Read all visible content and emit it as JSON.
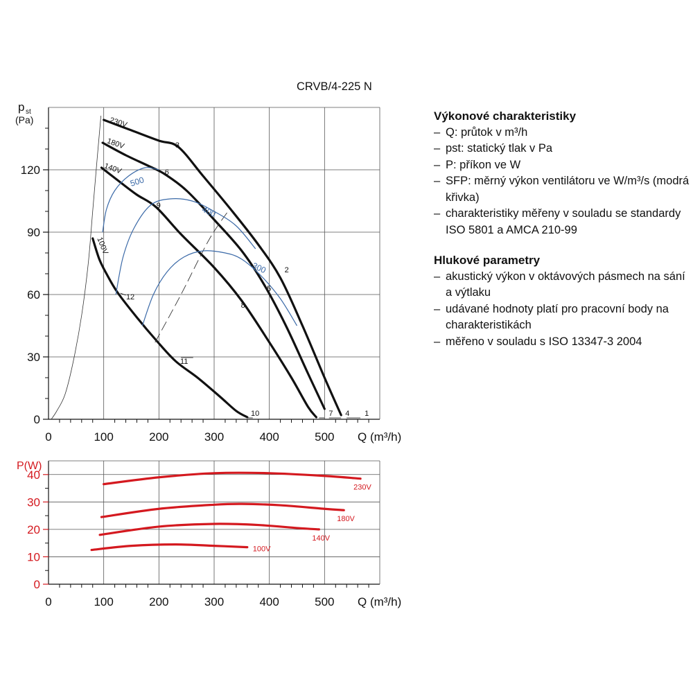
{
  "model_title": "CRVB/4-225 N",
  "legend": {
    "section1_title": "Výkonové charakteristiky",
    "section1_items": [
      "Q: průtok v m³/h",
      "pst: statický tlak v Pa",
      "P: příkon ve W",
      "SFP: měrný výkon ventilátoru ve W/m³/s (modrá křivka)",
      "charakteristiky měřeny v souladu se standardy ISO 5801 a AMCA 210-99"
    ],
    "section2_title": "Hlukové parametry",
    "section2_items": [
      "akustický výkon v oktávových pásmech na sání a výtlaku",
      "udávané hodnoty platí pro pracovní body na charakteristikách",
      "měřeno v souladu s ISO 13347-3 2004"
    ]
  },
  "colors": {
    "fan_curves": "#111111",
    "sfp_curves": "#3b6aa8",
    "power_curves": "#d4191f",
    "grid": "#555555"
  },
  "chart_data": [
    {
      "type": "line",
      "ylabel_main": "p",
      "ylabel_sub": "st",
      "ylabel_unit": "(Pa)",
      "xlabel": "Q (m³/h)",
      "xlim": [
        0,
        600
      ],
      "ylim": [
        0,
        150
      ],
      "x_ticks": [
        0,
        100,
        200,
        300,
        400,
        500
      ],
      "y_ticks": [
        0,
        30,
        60,
        90,
        120
      ],
      "grid": true,
      "series": [
        {
          "name": "230V",
          "kind": "fan",
          "points": [
            [
              100,
              144
            ],
            [
              150,
              139
            ],
            [
              200,
              134
            ],
            [
              235,
              131
            ],
            [
              280,
              117
            ],
            [
              330,
              101
            ],
            [
              380,
              84
            ],
            [
              420,
              68
            ],
            [
              460,
              45
            ],
            [
              500,
              20
            ],
            [
              530,
              2
            ]
          ]
        },
        {
          "name": "180V",
          "kind": "fan",
          "points": [
            [
              98,
              133
            ],
            [
              140,
              127
            ],
            [
              180,
              122
            ],
            [
              210,
              118
            ],
            [
              250,
              110
            ],
            [
              300,
              96
            ],
            [
              350,
              81
            ],
            [
              390,
              65
            ],
            [
              430,
              45
            ],
            [
              470,
              22
            ],
            [
              500,
              5
            ]
          ]
        },
        {
          "name": "140V",
          "kind": "fan",
          "points": [
            [
              96,
              121
            ],
            [
              130,
              114
            ],
            [
              160,
              108
            ],
            [
              195,
              102
            ],
            [
              240,
              89
            ],
            [
              300,
              73
            ],
            [
              350,
              57
            ],
            [
              400,
              37
            ],
            [
              440,
              20
            ],
            [
              470,
              6
            ],
            [
              485,
              1
            ]
          ]
        },
        {
          "name": "100V",
          "kind": "fan",
          "points": [
            [
              80,
              87
            ],
            [
              92,
              77
            ],
            [
              105,
              70
            ],
            [
              125,
              61
            ],
            [
              160,
              49
            ],
            [
              195,
              38
            ],
            [
              230,
              28
            ],
            [
              270,
              20
            ],
            [
              310,
              11
            ],
            [
              340,
              4
            ],
            [
              360,
              1
            ]
          ]
        },
        {
          "name": "",
          "kind": "system",
          "points": [
            [
              5,
              0
            ],
            [
              15,
              4
            ],
            [
              30,
              12
            ],
            [
              45,
              28
            ],
            [
              60,
              50
            ],
            [
              72,
              75
            ],
            [
              80,
              100
            ],
            [
              88,
              125
            ],
            [
              95,
              146
            ]
          ]
        },
        {
          "name": "",
          "kind": "system-dashed",
          "points": [
            [
              193,
              37
            ],
            [
              240,
              60
            ],
            [
              290,
              86
            ],
            [
              325,
              100
            ]
          ]
        },
        {
          "name": "500",
          "kind": "sfp",
          "points": [
            [
              98,
              90
            ],
            [
              105,
              101
            ],
            [
              120,
              110
            ],
            [
              145,
              117
            ],
            [
              175,
              121
            ],
            [
              200,
              120
            ]
          ]
        },
        {
          "name": "400",
          "kind": "sfp",
          "points": [
            [
              122,
              60
            ],
            [
              135,
              78
            ],
            [
              155,
              92
            ],
            [
              185,
              103
            ],
            [
              220,
              106
            ],
            [
              260,
              105
            ],
            [
              300,
              100
            ],
            [
              340,
              93
            ],
            [
              375,
              82
            ]
          ]
        },
        {
          "name": "300",
          "kind": "sfp",
          "points": [
            [
              170,
              45
            ],
            [
              190,
              60
            ],
            [
              215,
              71
            ],
            [
              245,
              78
            ],
            [
              280,
              81
            ],
            [
              320,
              80
            ],
            [
              350,
              77
            ],
            [
              385,
              69
            ],
            [
              420,
              58
            ],
            [
              450,
              45
            ]
          ]
        }
      ],
      "labels": {
        "fan_voltages": [
          "230V",
          "180V",
          "140V",
          "100V"
        ],
        "points": [
          "1",
          "2",
          "3",
          "4",
          "5",
          "6",
          "7",
          "8",
          "9",
          "10",
          "11",
          "12"
        ],
        "sfp": [
          "500",
          "400",
          "300"
        ]
      }
    },
    {
      "type": "line",
      "ylabel": "P(W)",
      "xlabel": "Q (m³/h)",
      "xlim": [
        0,
        600
      ],
      "ylim": [
        0,
        45
      ],
      "x_ticks": [
        0,
        100,
        200,
        300,
        400,
        500
      ],
      "y_ticks": [
        0,
        10,
        20,
        30,
        40
      ],
      "grid": true,
      "series": [
        {
          "name": "230V",
          "points": [
            [
              100,
              36.5
            ],
            [
              200,
              39
            ],
            [
              300,
              40.5
            ],
            [
              400,
              40.5
            ],
            [
              500,
              39.5
            ],
            [
              565,
              38.5
            ]
          ]
        },
        {
          "name": "180V",
          "points": [
            [
              96,
              24.5
            ],
            [
              200,
              27.5
            ],
            [
              300,
              29
            ],
            [
              350,
              29.3
            ],
            [
              420,
              28.8
            ],
            [
              500,
              27.5
            ],
            [
              535,
              27
            ]
          ]
        },
        {
          "name": "140V",
          "points": [
            [
              93,
              18
            ],
            [
              200,
              21
            ],
            [
              300,
              22
            ],
            [
              380,
              21.6
            ],
            [
              450,
              20.5
            ],
            [
              490,
              20
            ]
          ]
        },
        {
          "name": "100V",
          "points": [
            [
              78,
              12.5
            ],
            [
              150,
              14
            ],
            [
              230,
              14.5
            ],
            [
              300,
              14
            ],
            [
              360,
              13.5
            ]
          ]
        }
      ]
    }
  ]
}
